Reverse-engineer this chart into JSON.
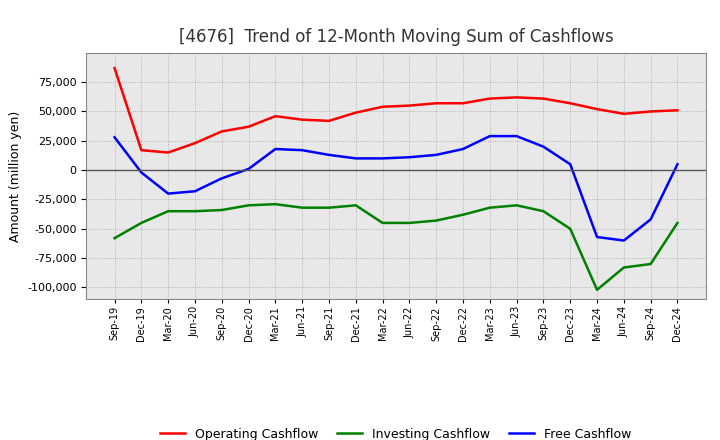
{
  "title": "[4676]  Trend of 12-Month Moving Sum of Cashflows",
  "ylabel": "Amount (million yen)",
  "x_labels": [
    "Sep-19",
    "Dec-19",
    "Mar-20",
    "Jun-20",
    "Sep-20",
    "Dec-20",
    "Mar-21",
    "Jun-21",
    "Sep-21",
    "Dec-21",
    "Mar-22",
    "Jun-22",
    "Sep-22",
    "Dec-22",
    "Mar-23",
    "Jun-23",
    "Sep-23",
    "Dec-23",
    "Mar-24",
    "Jun-24",
    "Sep-24",
    "Dec-24"
  ],
  "operating": [
    87000,
    17000,
    15000,
    23000,
    33000,
    37000,
    46000,
    43000,
    42000,
    49000,
    54000,
    55000,
    57000,
    57000,
    61000,
    62000,
    61000,
    57000,
    52000,
    48000,
    50000,
    51000
  ],
  "investing": [
    -58000,
    -45000,
    -35000,
    -35000,
    -34000,
    -30000,
    -29000,
    -32000,
    -32000,
    -30000,
    -45000,
    -45000,
    -43000,
    -38000,
    -32000,
    -30000,
    -35000,
    -50000,
    -102000,
    -83000,
    -80000,
    -45000
  ],
  "free": [
    28000,
    -2000,
    -20000,
    -18000,
    -7000,
    1000,
    18000,
    17000,
    13000,
    10000,
    10000,
    11000,
    13000,
    18000,
    29000,
    29000,
    20000,
    5000,
    -57000,
    -60000,
    -42000,
    5000
  ],
  "operating_color": "#FF0000",
  "investing_color": "#008000",
  "free_color": "#0000FF",
  "ylim": [
    -110000,
    100000
  ],
  "yticks": [
    -100000,
    -75000,
    -50000,
    -25000,
    0,
    25000,
    50000,
    75000
  ],
  "bg_color": "#DCDCDC",
  "grid_color": "#888888",
  "title_fontsize": 12,
  "axis_label_fontsize": 9,
  "tick_fontsize": 8,
  "xtick_fontsize": 7,
  "legend_fontsize": 9,
  "linewidth": 1.8
}
